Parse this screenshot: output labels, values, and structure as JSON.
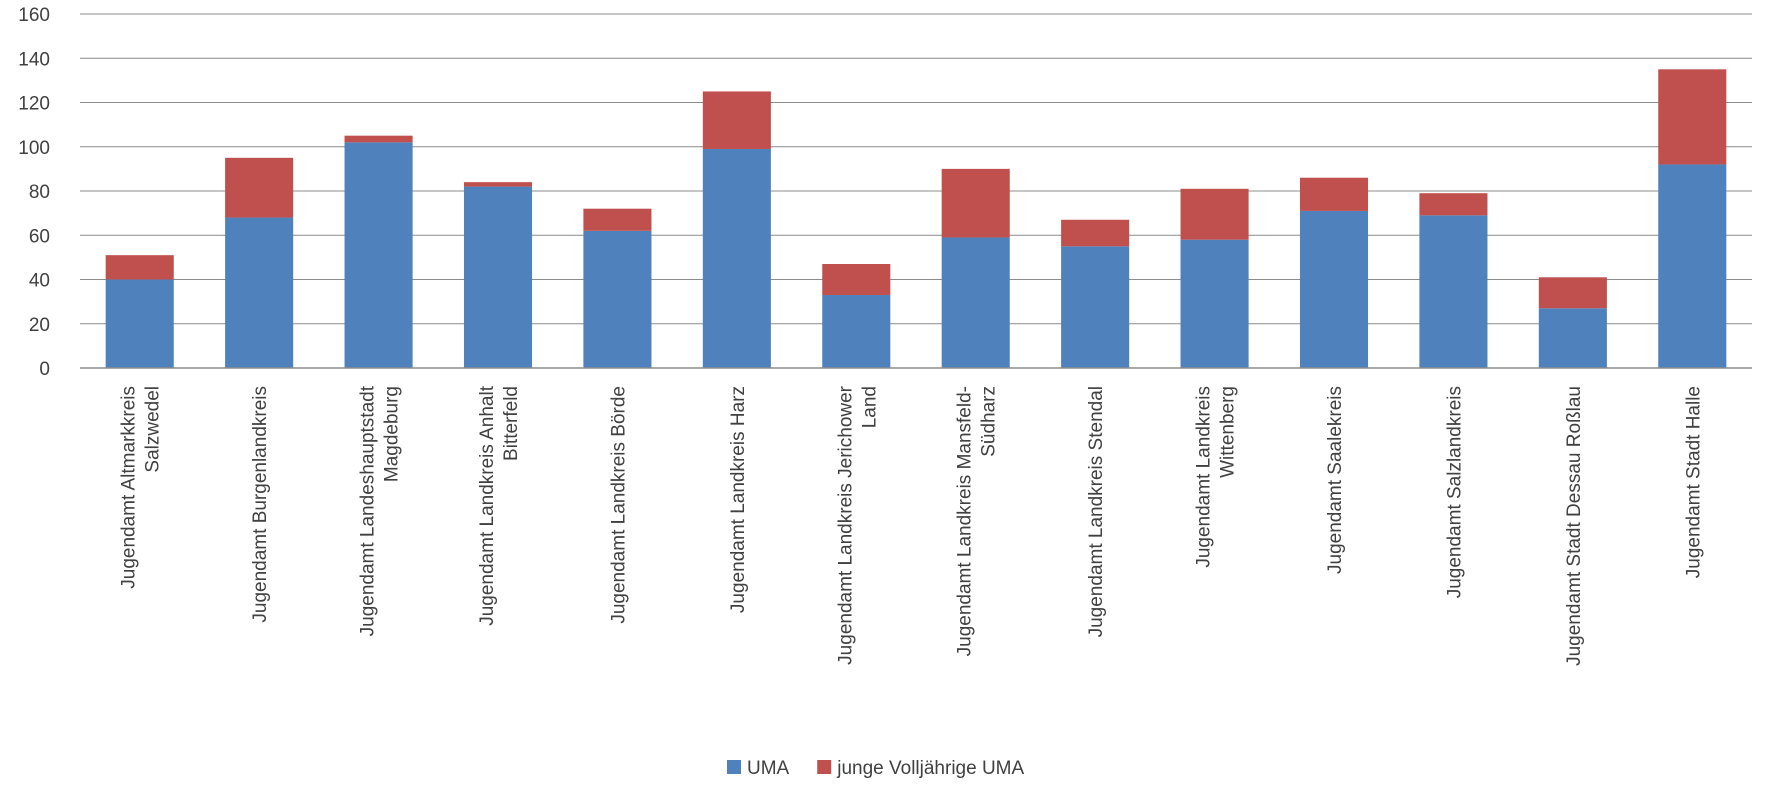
{
  "chart_data": {
    "type": "bar",
    "stacked": true,
    "title": "",
    "xlabel": "",
    "ylabel": "",
    "ylim": [
      0,
      160
    ],
    "yticks": [
      0,
      20,
      40,
      60,
      80,
      100,
      120,
      140,
      160
    ],
    "grid": true,
    "legend_position": "bottom",
    "categories": [
      [
        "Jugendamt Altmarkkreis",
        "Salzwedel"
      ],
      [
        "Jugendamt Burgenlandkreis"
      ],
      [
        "Jugendamt Landeshauptstadt",
        "Magdeburg"
      ],
      [
        "Jugendamt Landkreis Anhalt",
        "Bitterfeld"
      ],
      [
        "Jugendamt Landkreis Börde"
      ],
      [
        "Jugendamt Landkreis Harz"
      ],
      [
        "Jugendamt Landkreis Jerichower",
        "Land"
      ],
      [
        "Jugendamt Landkreis Mansfeld-",
        "Südharz"
      ],
      [
        "Jugendamt Landkreis Stendal"
      ],
      [
        "Jugendamt Landkreis",
        "Wittenberg"
      ],
      [
        "Jugendamt Saalekreis"
      ],
      [
        "Jugendamt Salzlandkreis"
      ],
      [
        "Jugendamt Stadt Dessau Roßlau"
      ],
      [
        "Jugendamt Stadt Halle"
      ]
    ],
    "series": [
      {
        "name": "UMA",
        "color": "#4F81BD",
        "values": [
          40,
          68,
          102,
          82,
          62,
          99,
          33,
          59,
          55,
          58,
          71,
          69,
          27,
          92
        ]
      },
      {
        "name": "junge Volljährige UMA",
        "color": "#C0504D",
        "values": [
          11,
          27,
          3,
          2,
          10,
          26,
          14,
          31,
          12,
          23,
          15,
          10,
          14,
          43
        ]
      }
    ]
  }
}
